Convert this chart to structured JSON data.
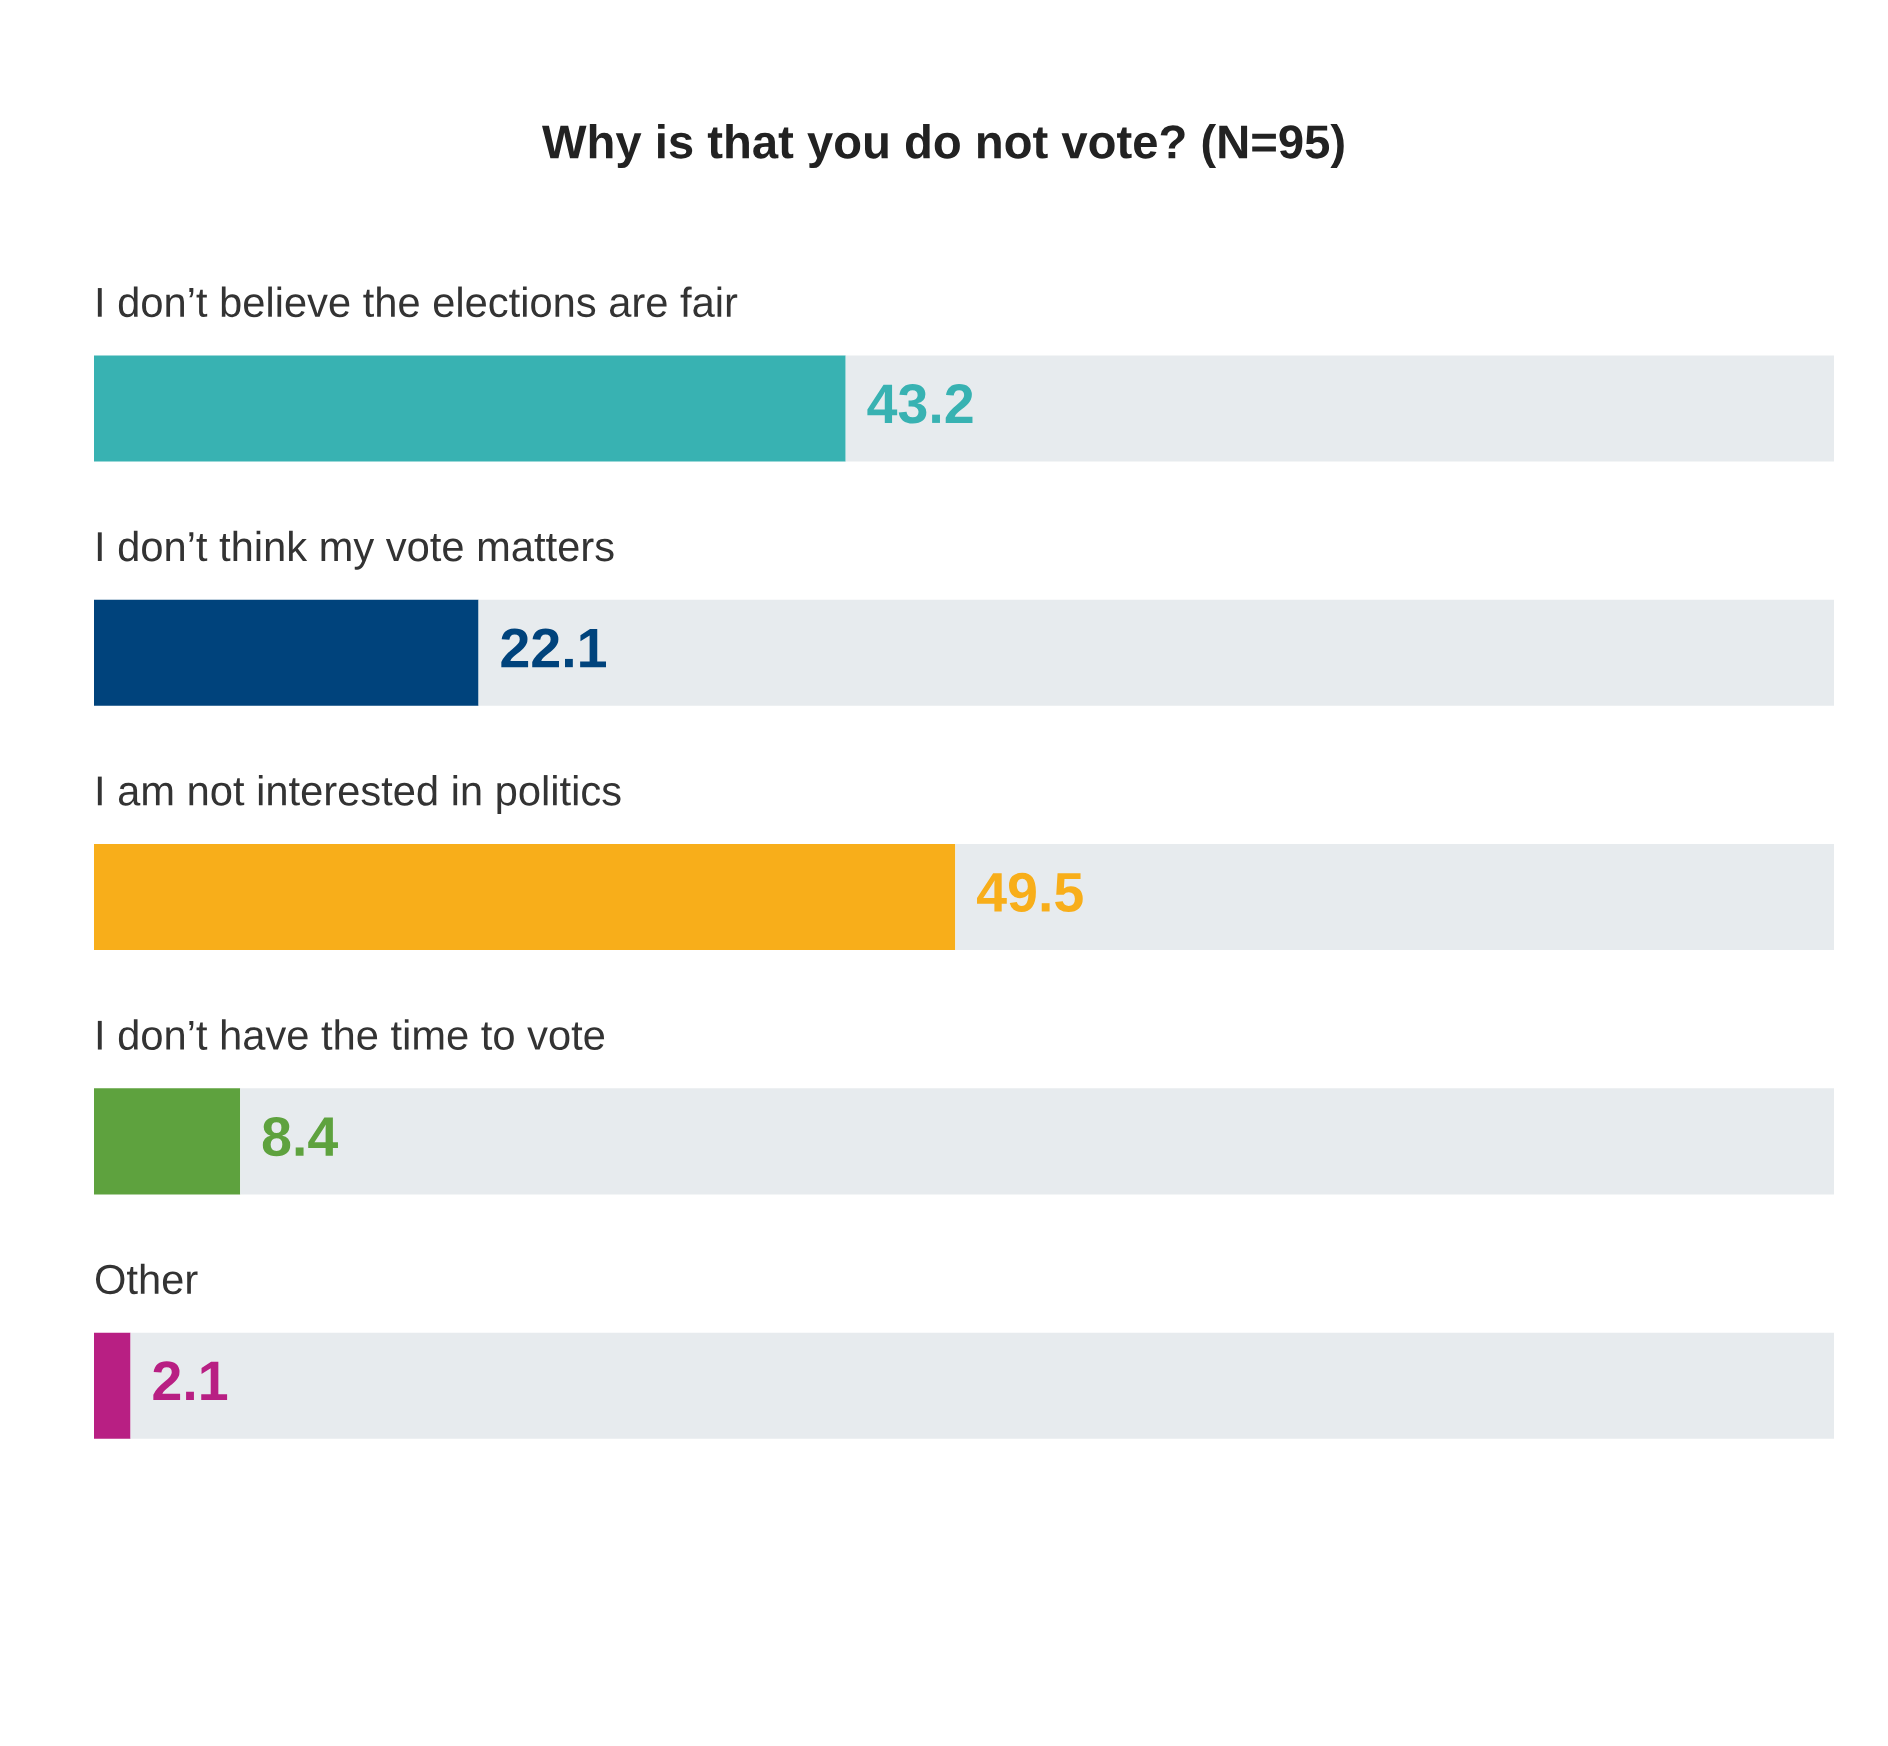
{
  "chart_data": {
    "type": "bar",
    "orientation": "horizontal",
    "stacked": true,
    "title": "Why is that you do not vote? (N=95)",
    "categories": [
      "I don’t believe the elections are fair",
      "I don’t think my vote matters",
      "I am not interested in politics",
      "I don’t have the time to vote",
      "Other"
    ],
    "series": [
      {
        "colors": [
          "#38b2b2",
          "#00437c",
          "#f8ae1a",
          "#5ea23e",
          "#b81f83"
        ],
        "values": [
          43.2,
          22.1,
          49.5,
          8.4,
          2.1
        ],
        "value_labels": [
          "43.2",
          "22.1",
          "49.5",
          "8.4",
          "2.1"
        ]
      },
      {
        "color": "#e7ebee",
        "values": [
          56.8,
          77.9,
          50.5,
          91.6,
          97.9
        ]
      }
    ],
    "xlim": [
      0,
      100
    ]
  }
}
